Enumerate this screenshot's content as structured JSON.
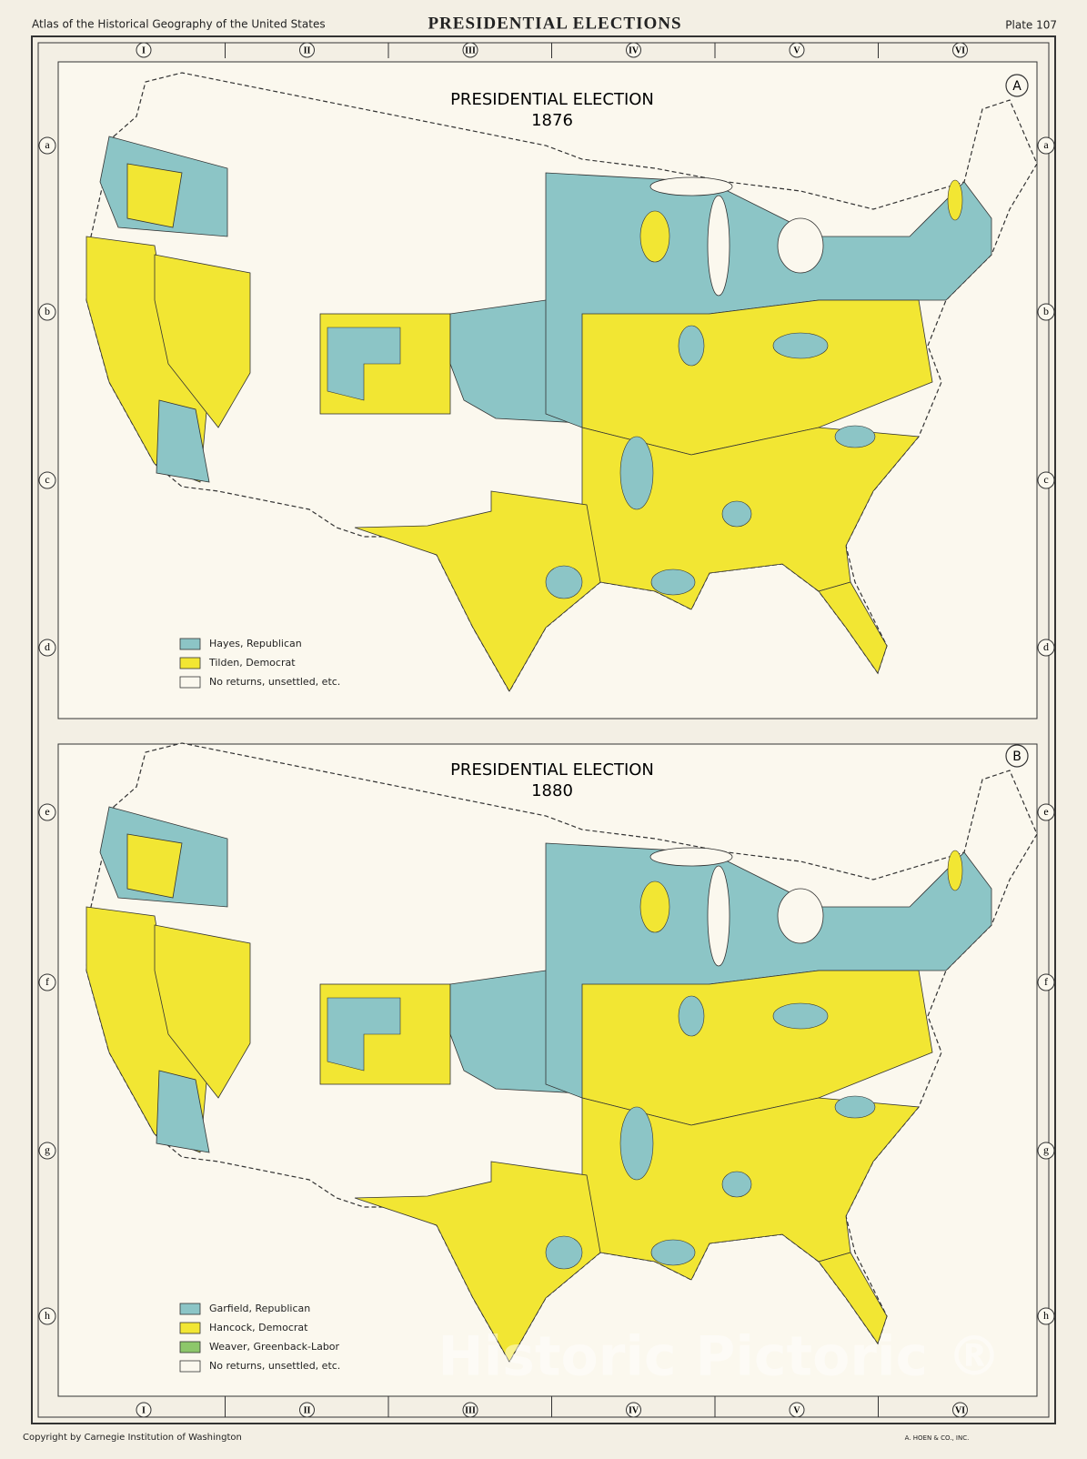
{
  "header": {
    "left": "Atlas of the Historical Geography of the United States",
    "title": "PRESIDENTIAL ELECTIONS",
    "plate": "Plate 107"
  },
  "grid": {
    "columns": [
      "I",
      "II",
      "III",
      "IV",
      "V",
      "VI"
    ],
    "rows": [
      "a",
      "b",
      "c",
      "d",
      "e",
      "f",
      "g",
      "h"
    ]
  },
  "panels": [
    {
      "letter": "A",
      "title": "PRESIDENTIAL ELECTION",
      "year": "1876",
      "legend": [
        {
          "label": "Hayes, Republican",
          "color": "#8cc5c6"
        },
        {
          "label": "Tilden, Democrat",
          "color": "#f2e633"
        },
        {
          "label": "No returns, unsettled, etc.",
          "color": "#fbf8ee"
        }
      ]
    },
    {
      "letter": "B",
      "title": "PRESIDENTIAL ELECTION",
      "year": "1880",
      "legend": [
        {
          "label": "Garfield, Republican",
          "color": "#8cc5c6"
        },
        {
          "label": "Hancock, Democrat",
          "color": "#f2e633"
        },
        {
          "label": "Weaver, Greenback-Labor",
          "color": "#8dc76a"
        },
        {
          "label": "No returns, unsettled, etc.",
          "color": "#fbf8ee"
        }
      ]
    }
  ],
  "footer": {
    "copyright": "Copyright by Carnegie Institution of Washington",
    "printer": "A. HOEN & CO., INC."
  },
  "watermark": "Historic Pictoric ®"
}
